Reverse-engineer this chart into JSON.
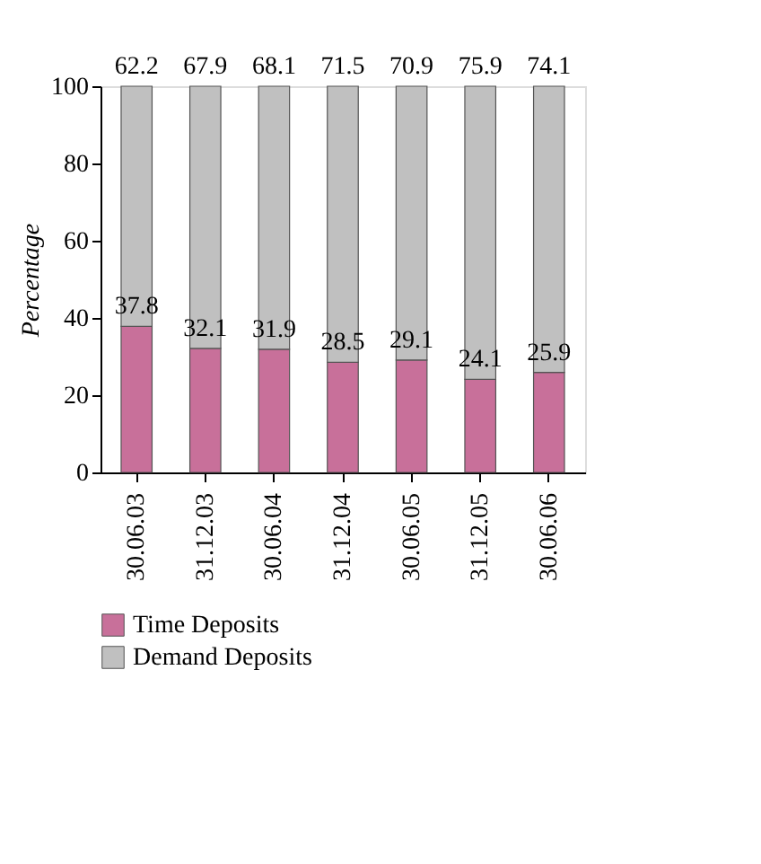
{
  "chart_data": {
    "type": "bar",
    "stacked": true,
    "ylabel": "Percentage",
    "categories": [
      "30.06.03",
      "31.12.03",
      "30.06.04",
      "31.12.04",
      "30.06.05",
      "31.12.05",
      "30.06.06"
    ],
    "series": [
      {
        "name": "Time Deposits",
        "color": "#c8709a",
        "values": [
          37.8,
          32.1,
          31.9,
          28.5,
          29.1,
          24.1,
          25.9
        ]
      },
      {
        "name": "Demand Deposits",
        "color": "#c0c0c0",
        "values": [
          62.2,
          67.9,
          68.1,
          71.5,
          70.9,
          75.9,
          74.1
        ]
      }
    ],
    "ylim": [
      0,
      100
    ],
    "yticks": [
      0,
      20,
      40,
      60,
      80,
      100
    ],
    "grid": false,
    "legend": "bottom",
    "data_labels": true
  }
}
